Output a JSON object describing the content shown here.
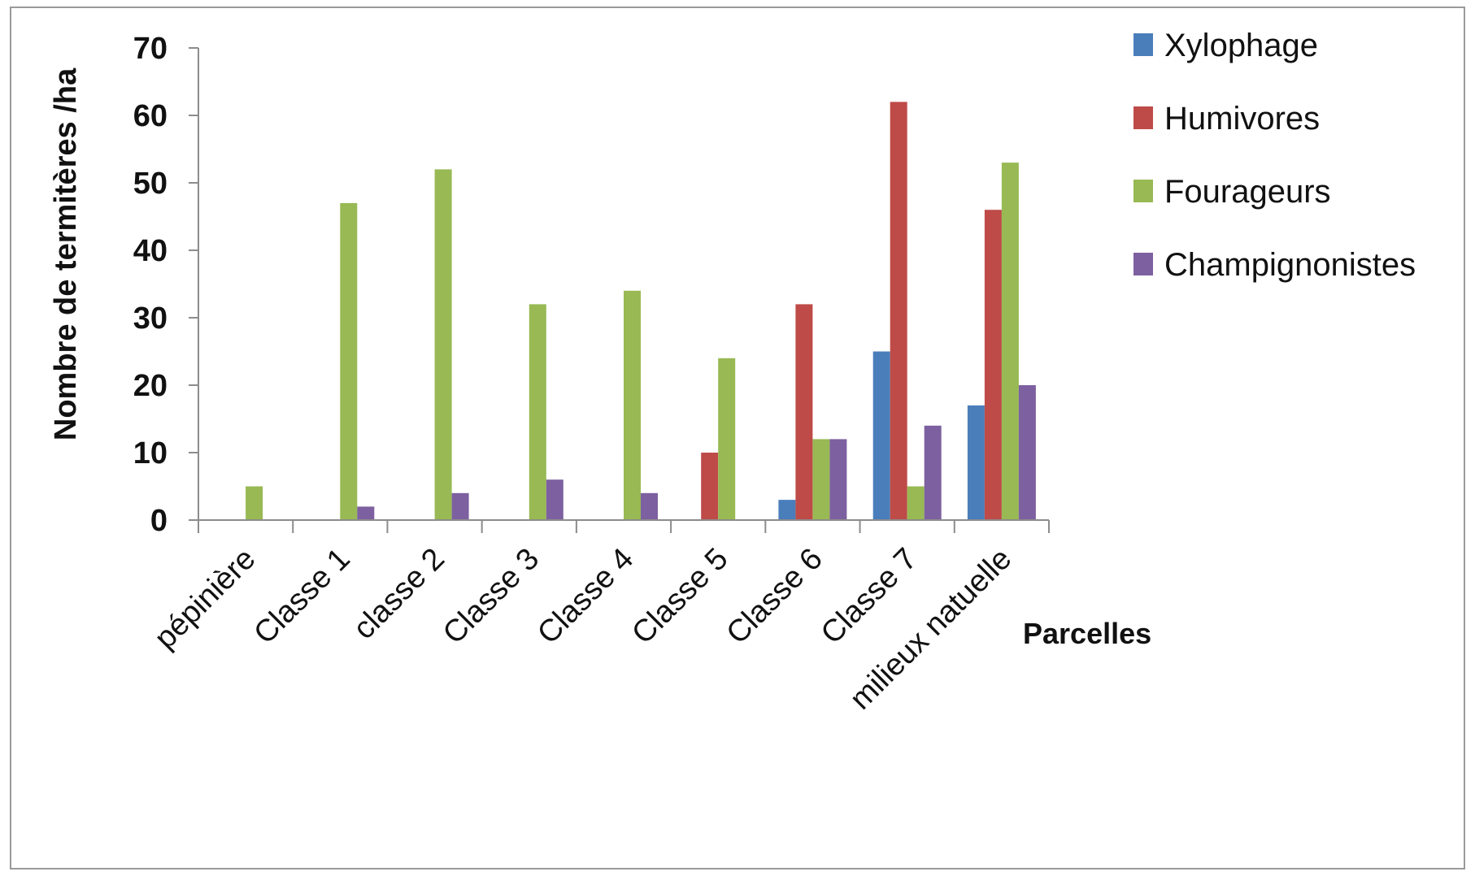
{
  "chart_data": {
    "type": "bar",
    "ylabel": "Nombre de termitères /ha",
    "xlabel": "Parcelles",
    "ylim": [
      0,
      70
    ],
    "yticks": [
      0,
      10,
      20,
      30,
      40,
      50,
      60,
      70
    ],
    "grid": false,
    "legend_position": "top-right",
    "categories": [
      "pépinière",
      "Classe 1",
      "classe 2",
      "Classe 3",
      "Classe 4",
      "Classe 5",
      "Classe 6",
      "Classe 7",
      "milieux natuelle"
    ],
    "series": [
      {
        "name": "Xylophage",
        "color": "#4a7ebb",
        "values": [
          0,
          0,
          0,
          0,
          0,
          0,
          3,
          25,
          17
        ]
      },
      {
        "name": "Humivores",
        "color": "#be4b48",
        "values": [
          0,
          0,
          0,
          0,
          0,
          10,
          32,
          62,
          46
        ]
      },
      {
        "name": "Fourageurs",
        "color": "#98b954",
        "values": [
          5,
          47,
          52,
          32,
          34,
          24,
          12,
          5,
          53
        ]
      },
      {
        "name": "Champignonistes",
        "color": "#7d60a0",
        "values": [
          0,
          2,
          4,
          6,
          4,
          0,
          12,
          14,
          20
        ]
      }
    ]
  }
}
